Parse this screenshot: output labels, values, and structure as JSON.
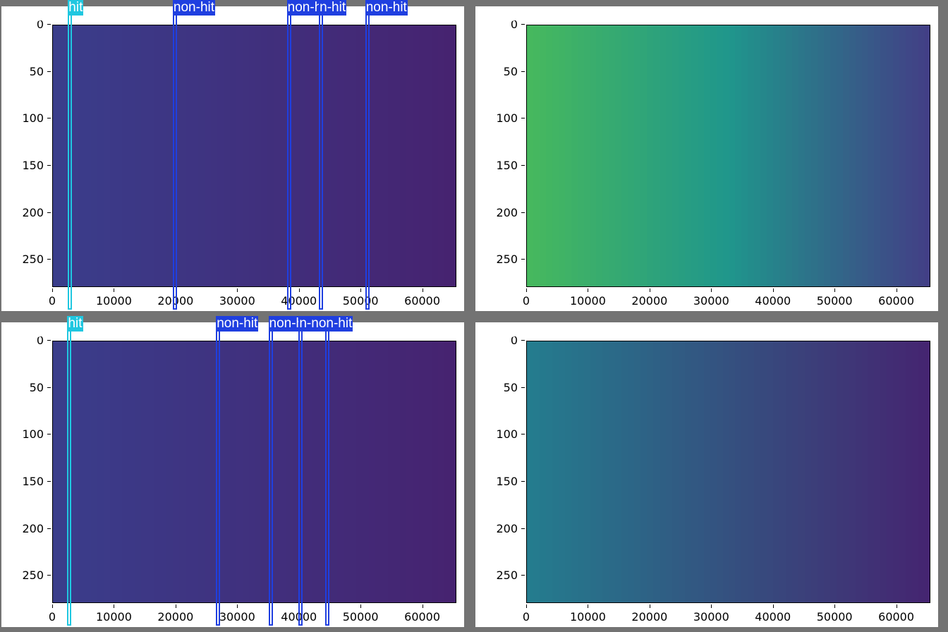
{
  "tiles": [
    {
      "filename": "img_318",
      "filename_suffix": ".jpg",
      "colors": {
        "start": "#3a3d8b",
        "end": "#462370"
      },
      "detections": [
        {
          "label": "hit",
          "class": "hit",
          "x_center": 2900,
          "width": 700
        },
        {
          "label": "non-hit",
          "class": "non-hit",
          "x_center": 19900,
          "width": 700
        },
        {
          "label": "non-hit",
          "class": "non-hit",
          "x_center": 38400,
          "width": 700
        },
        {
          "label": "n-hit",
          "class": "non-hit",
          "x_center": 43600,
          "width": 700
        },
        {
          "label": "non-hit",
          "class": "non-hit",
          "x_center": 51100,
          "width": 700
        }
      ]
    },
    {
      "filename": "img_31889.jpg",
      "filename_suffix": "",
      "colors": {
        "start": "#46b85e",
        "mid": "#1f968c",
        "end": "#423f86"
      },
      "detections": []
    },
    {
      "filename": "img_318",
      "filename_suffix": "3.jpg",
      "colors": {
        "start": "#3a3d8b",
        "end": "#462370"
      },
      "detections": [
        {
          "label": "hit",
          "class": "hit",
          "x_center": 2800,
          "width": 600
        },
        {
          "label": "non-hit",
          "class": "non-hit",
          "x_center": 26900,
          "width": 600
        },
        {
          "label": "non-hit",
          "class": "non-hit",
          "x_center": 35400,
          "width": 600
        },
        {
          "label": "n-non-hit",
          "class": "non-hit",
          "x_center": 40300,
          "width": 600
        },
        {
          "label": "",
          "class": "non-hit",
          "x_center": 44600,
          "width": 600
        }
      ]
    },
    {
      "filename": "img_31891.jpg",
      "filename_suffix": "",
      "colors": {
        "start": "#247c8e",
        "end": "#452571"
      },
      "detections": []
    }
  ],
  "axes": {
    "y_ticks": [
      "0",
      "50",
      "100",
      "150",
      "200",
      "250"
    ],
    "y_values": [
      0,
      50,
      100,
      150,
      200,
      250
    ],
    "y_max": 279,
    "x_ticks": [
      "0",
      "10000",
      "20000",
      "30000",
      "40000",
      "50000",
      "60000"
    ],
    "x_values": [
      0,
      10000,
      20000,
      30000,
      40000,
      50000,
      60000
    ],
    "x_max": 65535
  },
  "class_colors": {
    "hit": "#20c7e0",
    "non-hit": "#1f3fe0"
  }
}
